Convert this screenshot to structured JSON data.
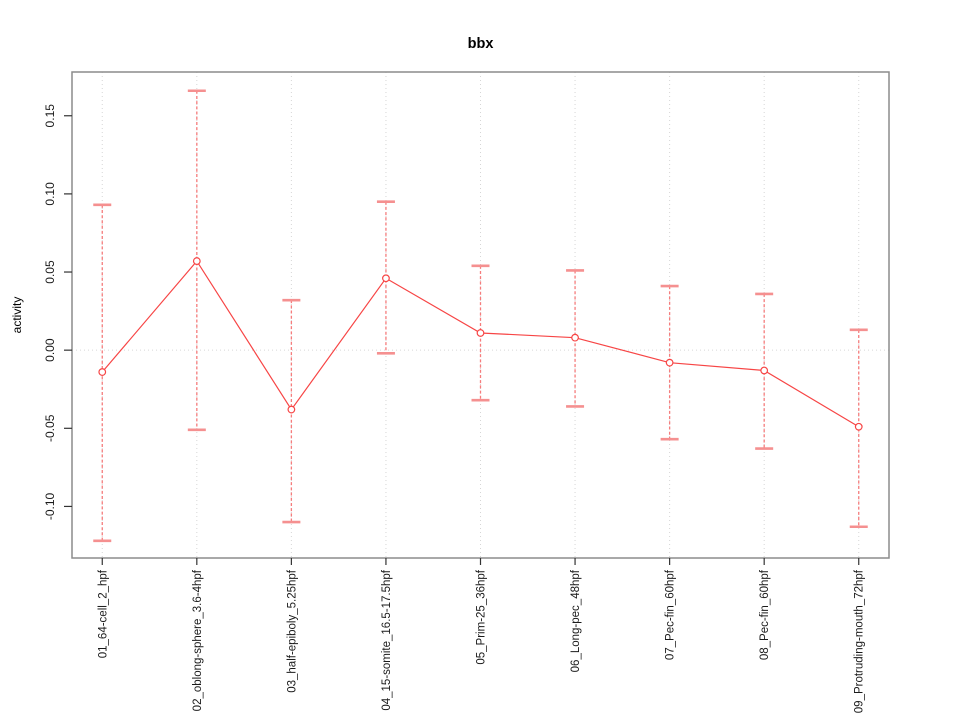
{
  "chart_data": {
    "type": "line",
    "title": "bbx",
    "xlabel": "",
    "ylabel": "activity",
    "categories": [
      "01_64-cell_2_hpf",
      "02_oblong-sphere_3.6-4hpf",
      "03_half-epiboly_5.25hpf",
      "04_15-somite_16.5-17.5hpf",
      "05_Prim-25_36hpf",
      "06_Long-pec_48hpf",
      "07_Pec-fin_60hpf",
      "08_Pec-fin_60hpf",
      "09_Protruding-mouth_72hpf"
    ],
    "series": [
      {
        "name": "bbx",
        "values": [
          -0.014,
          0.057,
          -0.038,
          0.046,
          0.011,
          0.008,
          -0.008,
          -0.013,
          -0.049
        ],
        "upper": [
          0.093,
          0.166,
          0.032,
          0.095,
          0.054,
          0.051,
          0.041,
          0.036,
          0.013
        ],
        "lower": [
          -0.122,
          -0.051,
          -0.11,
          -0.002,
          -0.032,
          -0.036,
          -0.057,
          -0.063,
          -0.113
        ]
      }
    ],
    "yticks": [
      -0.1,
      -0.05,
      0.0,
      0.05,
      0.1,
      0.15
    ],
    "ytick_labels": [
      "-0.10",
      "-0.05",
      "0.00",
      "0.05",
      "0.10",
      "0.15"
    ],
    "ylim": [
      -0.133,
      0.178
    ],
    "xlim": [
      0.68,
      9.32
    ],
    "grid": {
      "vertical_at_categories": true,
      "horizontal_at_zero": true,
      "style": "dotted"
    },
    "legend": "none",
    "colors": {
      "line": "#f74545",
      "point_stroke": "#f74545",
      "point_fill": "#ffffff",
      "error_bar": "#f67c7c",
      "error_cap": "#f59090",
      "grid": "#d6d6d6",
      "axis_box": "#8c8c8c",
      "tick": "#333333",
      "text": "#1a1a1a"
    }
  }
}
